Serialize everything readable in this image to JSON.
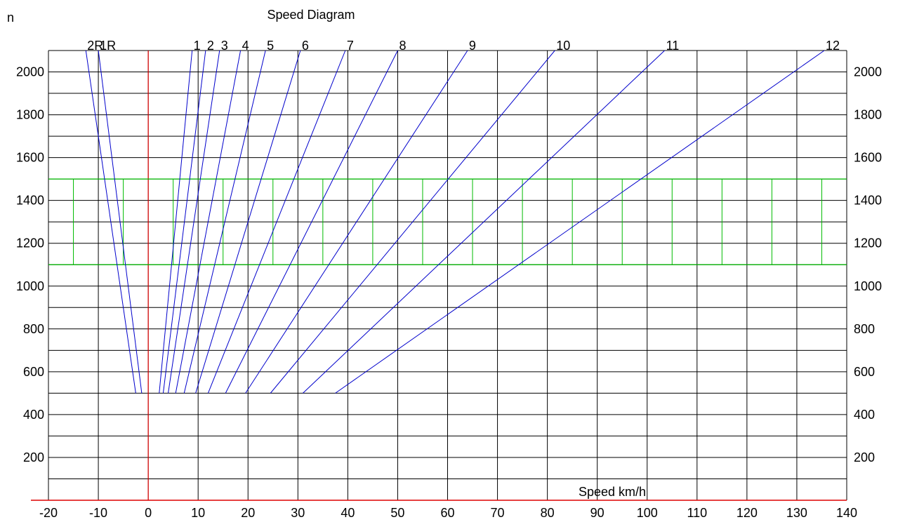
{
  "chart_data": {
    "type": "line",
    "title": "Speed Diagram",
    "ylabel": "n",
    "xlabel": "Speed km/h",
    "xlim": [
      -20,
      140
    ],
    "ylim": [
      0,
      2100
    ],
    "x_ticks": [
      -20,
      -10,
      0,
      10,
      20,
      30,
      40,
      50,
      60,
      70,
      80,
      90,
      100,
      110,
      120,
      130,
      140
    ],
    "y_ticks": [
      200,
      400,
      600,
      800,
      1000,
      1200,
      1400,
      1600,
      1800,
      2000
    ],
    "grid": true,
    "zero_line_x": 0,
    "band": {
      "lower": 1100,
      "upper": 1500,
      "markers": [
        -15,
        -5,
        5,
        15,
        25,
        35,
        45,
        55,
        65,
        75,
        85,
        95,
        105,
        115,
        125,
        135
      ]
    },
    "colors": {
      "gear_lines": "#0000cc",
      "zero_line": "#dd0000",
      "band": "#00bb00",
      "grid": "#000000"
    },
    "series": [
      {
        "name": "2R",
        "x": [
          -2.5,
          -12.5
        ],
        "y": [
          500,
          2100
        ]
      },
      {
        "name": "1R",
        "x": [
          -1.3,
          -10.0
        ],
        "y": [
          500,
          2100
        ]
      },
      {
        "name": "1",
        "x": [
          2.2,
          8.8
        ],
        "y": [
          500,
          2100
        ]
      },
      {
        "name": "2",
        "x": [
          3.0,
          11.5
        ],
        "y": [
          500,
          2100
        ]
      },
      {
        "name": "3",
        "x": [
          4.0,
          14.3
        ],
        "y": [
          500,
          2100
        ]
      },
      {
        "name": "4",
        "x": [
          5.5,
          18.5
        ],
        "y": [
          500,
          2100
        ]
      },
      {
        "name": "5",
        "x": [
          7.2,
          23.5
        ],
        "y": [
          500,
          2100
        ]
      },
      {
        "name": "6",
        "x": [
          9.5,
          30.5
        ],
        "y": [
          500,
          2100
        ]
      },
      {
        "name": "7",
        "x": [
          12.0,
          39.5
        ],
        "y": [
          500,
          2100
        ]
      },
      {
        "name": "8",
        "x": [
          15.5,
          50.0
        ],
        "y": [
          500,
          2100
        ]
      },
      {
        "name": "9",
        "x": [
          19.5,
          64.0
        ],
        "y": [
          500,
          2100
        ]
      },
      {
        "name": "10",
        "x": [
          24.5,
          81.5
        ],
        "y": [
          500,
          2100
        ]
      },
      {
        "name": "11",
        "x": [
          31.0,
          103.5
        ],
        "y": [
          500,
          2100
        ]
      },
      {
        "name": "12",
        "x": [
          37.5,
          135.5
        ],
        "y": [
          500,
          2100
        ]
      }
    ]
  }
}
